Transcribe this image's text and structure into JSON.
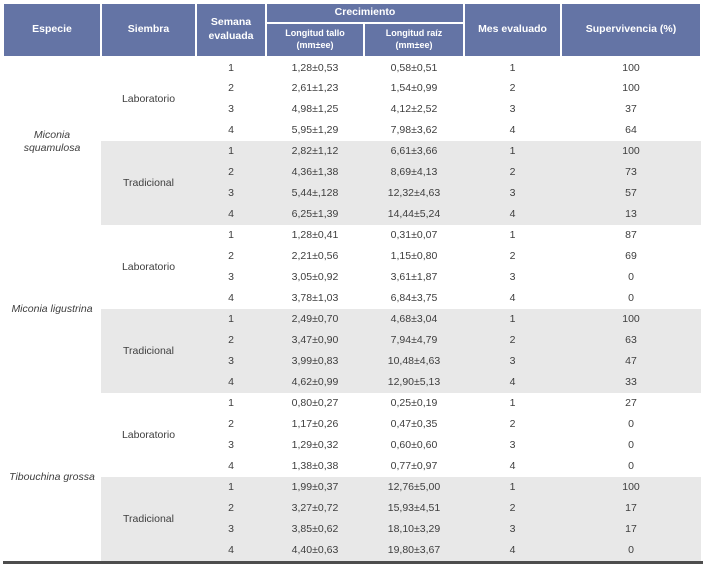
{
  "table": {
    "headers": {
      "especie": "Especie",
      "siembra": "Siembra",
      "semana": "Semana\nevaluada",
      "crecimiento": "Crecimiento",
      "tallo": "Longitud tallo\n(mm±ee)",
      "raiz": "Longitud raíz\n(mm±ee)",
      "mes": "Mes evaluado",
      "supervivencia": "Supervivencia (%)"
    },
    "colors": {
      "header_bg": "#6474a5",
      "header_text": "#ffffff",
      "shaded_row_bg": "#e8e8e8",
      "body_text": "#3e3e3e",
      "bottom_rule": "#4d4d4d"
    },
    "species": [
      {
        "name": "Miconia\nsquamulosa",
        "groups": [
          {
            "siembra": "Laboratorio",
            "shaded": false,
            "rows": [
              {
                "week": "1",
                "stem": "1,28±0,53",
                "root": "0,58±0,51",
                "month": "1",
                "survival": "100"
              },
              {
                "week": "2",
                "stem": "2,61±1,23",
                "root": "1,54±0,99",
                "month": "2",
                "survival": "100"
              },
              {
                "week": "3",
                "stem": "4,98±1,25",
                "root": "4,12±2,52",
                "month": "3",
                "survival": "37"
              },
              {
                "week": "4",
                "stem": "5,95±1,29",
                "root": "7,98±3,62",
                "month": "4",
                "survival": "64"
              }
            ]
          },
          {
            "siembra": "Tradicional",
            "shaded": true,
            "rows": [
              {
                "week": "1",
                "stem": "2,82±1,12",
                "root": "6,61±3,66",
                "month": "1",
                "survival": "100"
              },
              {
                "week": "2",
                "stem": "4,36±1,38",
                "root": "8,69±4,13",
                "month": "2",
                "survival": "73"
              },
              {
                "week": "3",
                "stem": "5,44±,128",
                "root": "12,32±4,63",
                "month": "3",
                "survival": "57"
              },
              {
                "week": "4",
                "stem": "6,25±1,39",
                "root": "14,44±5,24",
                "month": "4",
                "survival": "13"
              }
            ]
          }
        ]
      },
      {
        "name": "Miconia ligustrina",
        "groups": [
          {
            "siembra": "Laboratorio",
            "shaded": false,
            "rows": [
              {
                "week": "1",
                "stem": "1,28±0,41",
                "root": "0,31±0,07",
                "month": "1",
                "survival": "87"
              },
              {
                "week": "2",
                "stem": "2,21±0,56",
                "root": "1,15±0,80",
                "month": "2",
                "survival": "69"
              },
              {
                "week": "3",
                "stem": "3,05±0,92",
                "root": "3,61±1,87",
                "month": "3",
                "survival": "0"
              },
              {
                "week": "4",
                "stem": "3,78±1,03",
                "root": "6,84±3,75",
                "month": "4",
                "survival": "0"
              }
            ]
          },
          {
            "siembra": "Tradicional",
            "shaded": true,
            "rows": [
              {
                "week": "1",
                "stem": "2,49±0,70",
                "root": "4,68±3,04",
                "month": "1",
                "survival": "100"
              },
              {
                "week": "2",
                "stem": "3,47±0,90",
                "root": "7,94±4,79",
                "month": "2",
                "survival": "63"
              },
              {
                "week": "3",
                "stem": "3,99±0,83",
                "root": "10,48±4,63",
                "month": "3",
                "survival": "47"
              },
              {
                "week": "4",
                "stem": "4,62±0,99",
                "root": "12,90±5,13",
                "month": "4",
                "survival": "33"
              }
            ]
          }
        ]
      },
      {
        "name": "Tibouchina grossa",
        "groups": [
          {
            "siembra": "Laboratorio",
            "shaded": false,
            "rows": [
              {
                "week": "1",
                "stem": "0,80±0,27",
                "root": "0,25±0,19",
                "month": "1",
                "survival": "27"
              },
              {
                "week": "2",
                "stem": "1,17±0,26",
                "root": "0,47±0,35",
                "month": "2",
                "survival": "0"
              },
              {
                "week": "3",
                "stem": "1,29±0,32",
                "root": "0,60±0,60",
                "month": "3",
                "survival": "0"
              },
              {
                "week": "4",
                "stem": "1,38±0,38",
                "root": "0,77±0,97",
                "month": "4",
                "survival": "0"
              }
            ]
          },
          {
            "siembra": "Tradicional",
            "shaded": true,
            "rows": [
              {
                "week": "1",
                "stem": "1,99±0,37",
                "root": "12,76±5,00",
                "month": "1",
                "survival": "100"
              },
              {
                "week": "2",
                "stem": "3,27±0,72",
                "root": "15,93±4,51",
                "month": "2",
                "survival": "17"
              },
              {
                "week": "3",
                "stem": "3,85±0,62",
                "root": "18,10±3,29",
                "month": "3",
                "survival": "17"
              },
              {
                "week": "4",
                "stem": "4,40±0,63",
                "root": "19,80±3,67",
                "month": "4",
                "survival": "0"
              }
            ]
          }
        ]
      }
    ]
  }
}
